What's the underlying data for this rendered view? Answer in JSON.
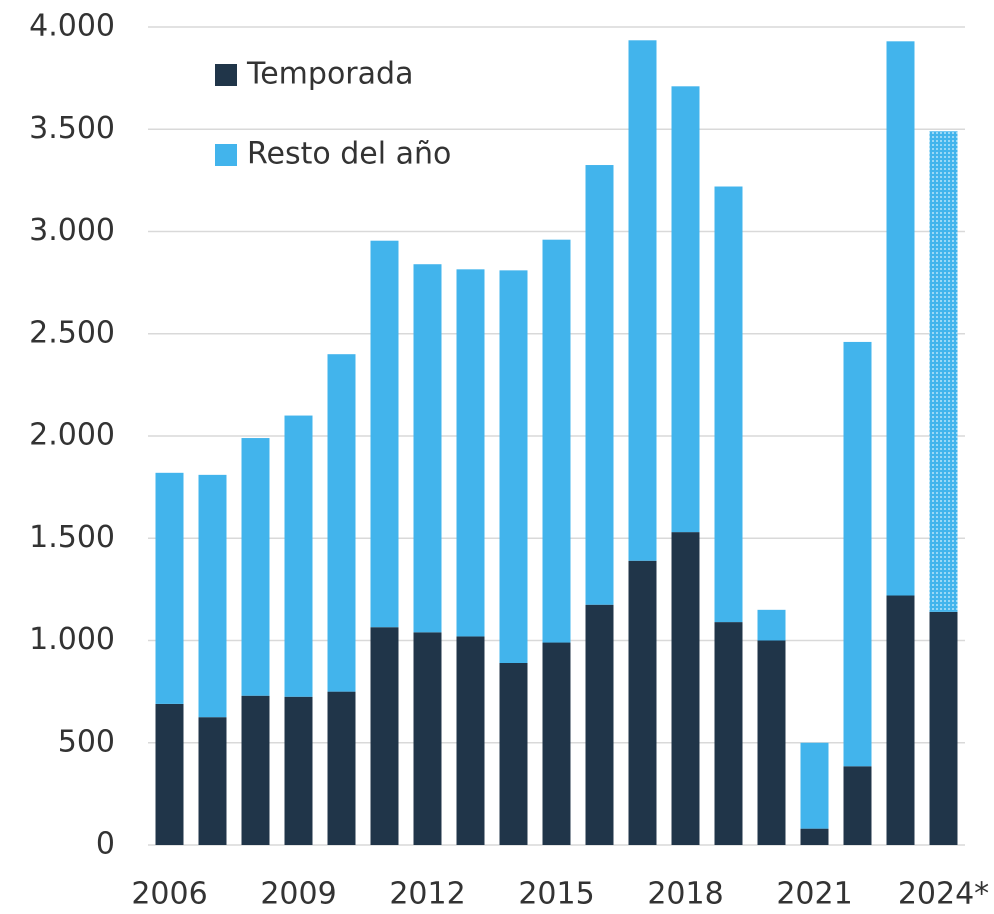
{
  "chart_data": {
    "type": "stacked_bar",
    "categories": [
      "2006",
      null,
      null,
      "2009",
      null,
      null,
      "2012",
      null,
      null,
      "2015",
      null,
      null,
      "2018",
      null,
      null,
      "2021",
      null,
      null,
      "2024*"
    ],
    "series": [
      {
        "name": "Temporada",
        "color": "#203549",
        "values": [
          690,
          625,
          730,
          725,
          750,
          1065,
          1040,
          1020,
          890,
          990,
          1175,
          1390,
          1530,
          1090,
          1000,
          80,
          385,
          1220,
          1140
        ]
      },
      {
        "name": "Resto del año",
        "color": "#42b4ec",
        "values": [
          1130,
          1185,
          1260,
          1375,
          1650,
          1890,
          1800,
          1795,
          1920,
          1970,
          2150,
          2545,
          2180,
          2130,
          150,
          420,
          2075,
          2710,
          2350
        ]
      }
    ],
    "ylim": [
      0,
      4000
    ],
    "yticks": [
      0,
      500,
      {
        "value": 1000,
        "label": "1.000"
      },
      {
        "value": 1500,
        "label": "1.500"
      },
      {
        "value": 2000,
        "label": "2.000"
      },
      {
        "value": 2500,
        "label": "2.500"
      },
      {
        "value": 3000,
        "label": "3.000"
      },
      {
        "value": 3500,
        "label": "3.500"
      },
      {
        "value": 4000,
        "label": "4.000"
      }
    ],
    "grid": true,
    "legend": "top-left"
  }
}
